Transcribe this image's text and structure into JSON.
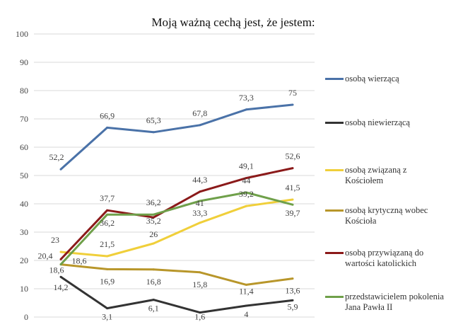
{
  "chart_data": {
    "type": "line",
    "title": "Moją ważną cechą jest, że jestem:",
    "xlabel": "",
    "ylabel": "",
    "ylim": [
      0,
      100
    ],
    "yticks": [
      "0",
      "10",
      "20",
      "30",
      "40",
      "50",
      "60",
      "70",
      "80",
      "90",
      "100"
    ],
    "grid": true,
    "legend": "right",
    "series": [
      {
        "name": "osobą wierzącą",
        "color": "#4a72a8",
        "values": [
          52.2,
          66.9,
          65.3,
          67.8,
          73.3,
          75
        ],
        "labels": [
          "52,2",
          "66,9",
          "65,3",
          "67,8",
          "73,3",
          "75"
        ]
      },
      {
        "name": "osobą niewierzącą",
        "color": "#333333",
        "values": [
          14.2,
          3.1,
          6.1,
          1.6,
          4,
          5.9
        ],
        "labels": [
          "14,2",
          "3,1",
          "6,1",
          "1,6",
          "4",
          "5,9"
        ]
      },
      {
        "name": "osobą związaną z Kościołem",
        "color": "#f0cf3a",
        "values": [
          23,
          21.5,
          26,
          33.3,
          39.2,
          41.5
        ],
        "labels": [
          "23",
          "21,5",
          "26",
          "33,3",
          "39,2",
          "41,5"
        ]
      },
      {
        "name": "osobą krytyczną wobec Kościoła",
        "color": "#b8962a",
        "values": [
          18.6,
          16.9,
          16.8,
          15.8,
          11.4,
          13.6
        ],
        "labels": [
          "18,6",
          "16,9",
          "16,8",
          "15,8",
          "11,4",
          "13,6"
        ]
      },
      {
        "name": "osobą przywiązaną do wartości katolickich",
        "color": "#8b1a1a",
        "values": [
          20.4,
          37.7,
          35.2,
          44.3,
          49.1,
          52.6
        ],
        "labels": [
          "20,4",
          "37,7",
          "35,2",
          "44,3",
          "49,1",
          "52,6"
        ]
      },
      {
        "name": "przedstawicielem pokolenia Jana Pawła II",
        "color": "#6fa04a",
        "values": [
          18.6,
          36.2,
          36.2,
          41,
          44,
          39.7
        ],
        "labels": [
          "18,6",
          "36,2",
          "36,2",
          "41",
          "44",
          "39,7"
        ]
      }
    ]
  }
}
